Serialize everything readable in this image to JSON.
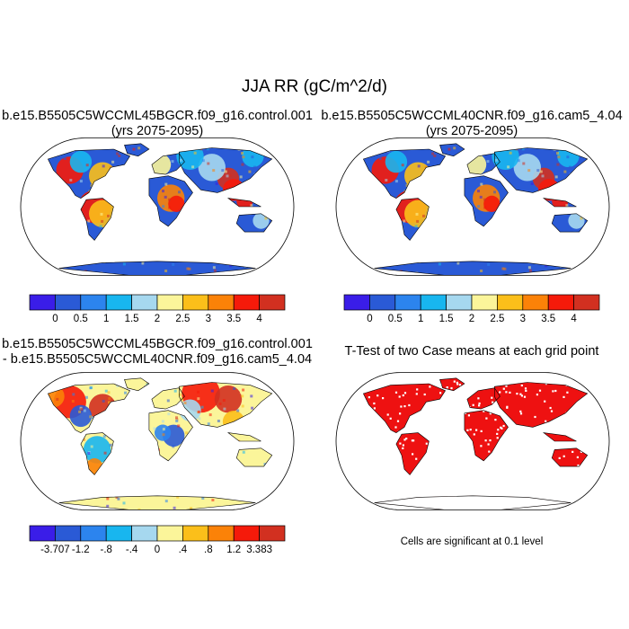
{
  "title": "JJA RR (gC/m^2/d)",
  "panels": [
    {
      "id": "case1",
      "title_line1": "b.e15.B5505C5WCCML45BGCR.f09_g16.control.001",
      "title_line2": "(yrs 2075-2095)"
    },
    {
      "id": "case2",
      "title_line1": "b.e15.B5505C5WCCML40CNR.f09_g16.cam5_4.04",
      "title_line2": "(yrs 2075-2095)"
    },
    {
      "id": "diff",
      "title_line1": "b.e15.B5505C5WCCML45BGCR.f09_g16.control.001",
      "title_line2": "- b.e15.B5505C5WCCML40CNR.f09_g16.cam5_4.04"
    },
    {
      "id": "ttest",
      "title_line1": "T-Test of two Case means at each grid point"
    }
  ],
  "colorbar_abs": {
    "colors": [
      "#3a1de8",
      "#2a5ad6",
      "#2c84ee",
      "#18b6ef",
      "#a6d8ef",
      "#fbf59a",
      "#fbbf1a",
      "#fb8208",
      "#f51a0a",
      "#d23020"
    ],
    "labels": [
      "0",
      "0.5",
      "1",
      "1.5",
      "2",
      "2.5",
      "3",
      "3.5",
      "4"
    ]
  },
  "colorbar_diff": {
    "colors": [
      "#3a1de8",
      "#2a5ad6",
      "#2c84ee",
      "#18b6ef",
      "#a6d8ef",
      "#fbf59a",
      "#fbbf1a",
      "#fb8208",
      "#f51a0a",
      "#d23020"
    ],
    "labels": [
      "-3.707",
      "-1.2",
      "-.8",
      "-.4",
      "0",
      ".4",
      ".8",
      "1.2",
      "3.383"
    ]
  },
  "significance_note": "Cells are significant at 0.1 level",
  "map_colors": {
    "ocean": "#ffffff",
    "significant": "#ee1111",
    "land_base_abs": "#2a5ad6",
    "land_base_diff": "#fbf59a"
  }
}
